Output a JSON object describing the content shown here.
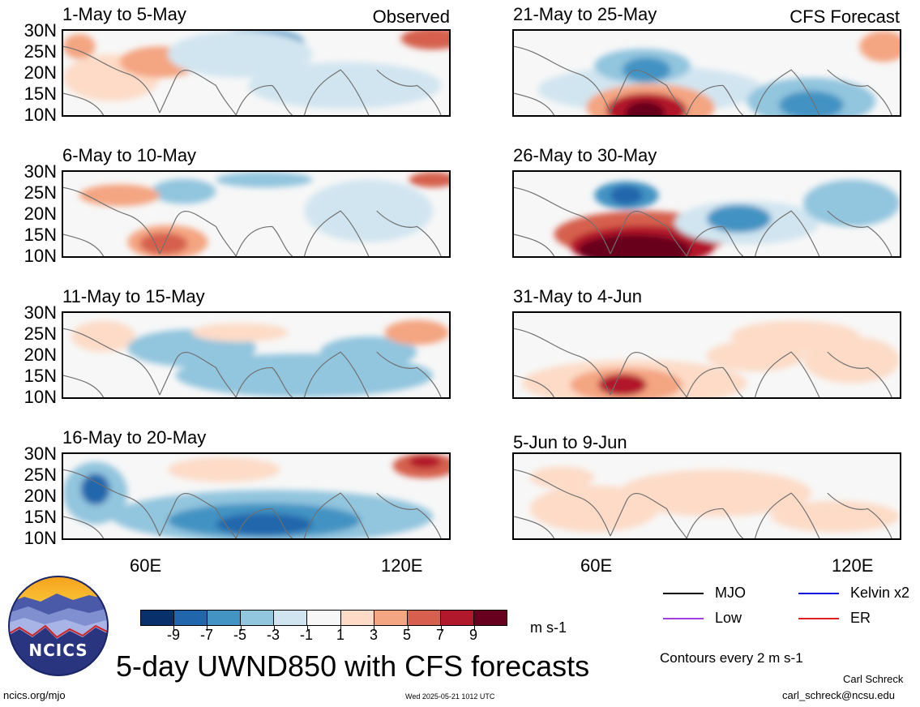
{
  "colors": {
    "palette": [
      "#08306b",
      "#2166ac",
      "#4393c3",
      "#92c5de",
      "#d1e5f0",
      "#f7f7f7",
      "#fddbc7",
      "#f4a582",
      "#d6604d",
      "#b2182b",
      "#67001f"
    ],
    "coastline": "#707070",
    "kelvin": "#1010e0",
    "mjo": "#000000",
    "low": "#a040e0",
    "er": "#e02020"
  },
  "panels": [
    {
      "title": "1-May to 5-May",
      "label": "Observed"
    },
    {
      "title": "21-May to 25-May",
      "label": "CFS Forecast"
    },
    {
      "title": "6-May to 10-May",
      "label": ""
    },
    {
      "title": "26-May to 30-May",
      "label": ""
    },
    {
      "title": "11-May to 15-May",
      "label": ""
    },
    {
      "title": "31-May to 4-Jun",
      "label": ""
    },
    {
      "title": "16-May to 20-May",
      "label": ""
    },
    {
      "title": "5-Jun to 9-Jun",
      "label": ""
    }
  ],
  "lat_labels": [
    "30N",
    "25N",
    "20N",
    "15N",
    "10N"
  ],
  "lon_labels": [
    "60E",
    "120E"
  ],
  "colorbar": {
    "labels": [
      "-9",
      "-7",
      "-5",
      "-3",
      "-1",
      "1",
      "3",
      "5",
      "7",
      "9"
    ],
    "units": "m s-1"
  },
  "legend": {
    "mjo": "MJO",
    "kelvin": "Kelvin x2",
    "low": "Low",
    "er": "ER",
    "contours": "Contours every 2 m s-1"
  },
  "title": "5-day UWND850 with CFS forecasts",
  "footer": {
    "left": "ncics.org/mjo",
    "timestamp": "Wed 2025-05-21 1012 UTC",
    "author": "Carl Schreck",
    "email": "carl_schreck@ncsu.edu"
  },
  "logo_text": "NCICS"
}
